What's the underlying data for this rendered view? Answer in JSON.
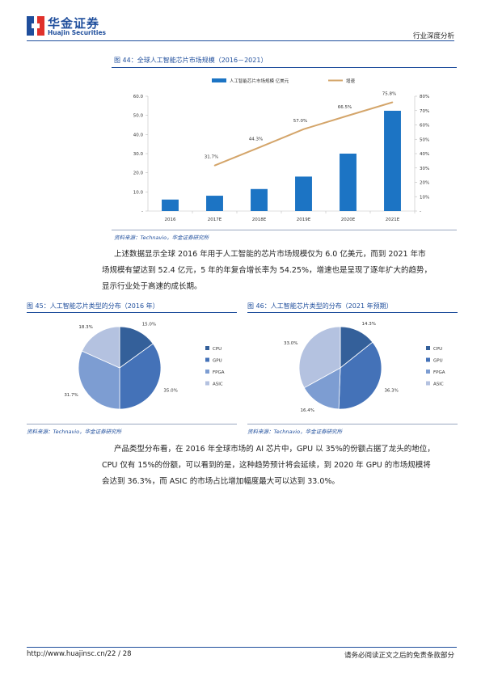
{
  "header": {
    "logo_cn": "华金证券",
    "logo_en": "Huajin Securities",
    "report_type": "行业深度分析"
  },
  "figure44": {
    "title": "图 44：全球人工智能芯片市场规模（2016－2021）",
    "source": "资料来源：Technavio，华金证券研究所"
  },
  "paragraph1": {
    "line1": "上述数据显示全球 2016 年用于人工智能的芯片市场规模仅为 6.0 亿美元，而到 2021 年市",
    "line2": "场规模有望达到 52.4 亿元，5 年的年复合增长率为 54.25%，增速也是呈现了逐年扩大的趋势，",
    "line3": "显示行业处于高速的成长期。"
  },
  "figure45": {
    "title": "图 45：人工智能芯片类型的分布（2016 年）",
    "source": "资料来源：Technavio，华金证券研究所"
  },
  "figure46": {
    "title": "图 46：人工智能芯片类型的分布（2021 年预期）",
    "source": "资料来源：Technavio，华金证券研究所"
  },
  "paragraph2": {
    "line1": "产品类型分布看，在 2016 年全球市场的 AI 芯片中，GPU 以 35%的份额占据了龙头的地位，",
    "line2": "CPU 仅有 15%的份额，可以看到的是，这种趋势预计将会延续，到 2020 年 GPU 的市场规模将",
    "line3": "会达到 36.3%，而 ASIC 的市场占比增加幅度最大可以达到 33.0%。"
  },
  "footer": {
    "url_page": "http://www.huajinsc.cn/22 / 28",
    "disclaimer": "请务必阅读正文之后的免责条款部分"
  },
  "colors": {
    "brand_blue": "#1f4e9c",
    "bar_blue": "#1c74c4",
    "line_tan": "#d4a56a",
    "pie_cpu": "#34609a",
    "pie_gpu": "#4472b8",
    "pie_fpga": "#7d9dd2",
    "pie_asic": "#b4c2e0"
  },
  "chart_data": [
    {
      "type": "bar",
      "categories": [
        "2016",
        "2017E",
        "2018E",
        "2019E",
        "2020E",
        "2021E"
      ],
      "series": [
        {
          "name": "人工智能芯片市场规模 亿美元",
          "kind": "bar",
          "axis": "left",
          "values": [
            6.0,
            8.0,
            11.5,
            18.0,
            30.0,
            52.4
          ]
        },
        {
          "name": "增速",
          "kind": "line",
          "axis": "right",
          "values": [
            null,
            31.7,
            44.3,
            57.0,
            66.5,
            75.8
          ],
          "labels": [
            "",
            "31.7%",
            "44.3%",
            "57.0%",
            "66.5%",
            "75.8%"
          ]
        }
      ],
      "ylim": [
        0,
        60
      ],
      "yticks": [
        "-",
        "10.0",
        "20.0",
        "30.0",
        "40.0",
        "50.0",
        "60.0"
      ],
      "y2lim": [
        0,
        80
      ],
      "y2ticks": [
        "-",
        "10%",
        "20%",
        "30%",
        "40%",
        "50%",
        "60%",
        "70%",
        "80%"
      ],
      "legend": "top"
    },
    {
      "type": "pie",
      "labels": [
        "CPU",
        "GPU",
        "FPGA",
        "ASIC"
      ],
      "values": [
        15.0,
        35.0,
        31.7,
        18.3
      ],
      "value_labels": [
        "15.0%",
        "35.0%",
        "31.7%",
        "18.3%"
      ],
      "legend": "right"
    },
    {
      "type": "pie",
      "labels": [
        "CPU",
        "GPU",
        "FPGA",
        "ASIC"
      ],
      "values": [
        14.3,
        36.3,
        16.4,
        33.0
      ],
      "value_labels": [
        "14.3%",
        "36.3%",
        "16.4%",
        "33.0%"
      ],
      "legend": "right"
    }
  ]
}
